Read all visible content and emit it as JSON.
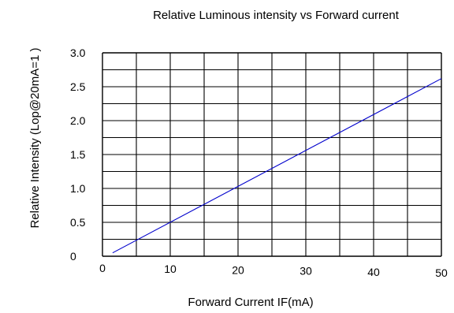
{
  "chart_data": {
    "type": "line",
    "title": "Relative Luminous intensity  vs  Forward current",
    "xlabel": "Forward Current IF(mA)",
    "ylabel": "Relative Intensity    (Lop@20mA=1 )",
    "xlim": [
      0,
      50
    ],
    "ylim": [
      0,
      3.0
    ],
    "x_ticks": [
      0,
      10,
      20,
      30,
      40,
      50
    ],
    "x_tick_labels": [
      "0",
      "10",
      "20",
      "30",
      "40",
      "50"
    ],
    "y_ticks": [
      0,
      0.5,
      1.0,
      1.5,
      2.0,
      2.5,
      3.0
    ],
    "y_tick_labels": [
      "0",
      "0.5",
      "1.0",
      "1.5",
      "2.0",
      "2.5",
      "3.0"
    ],
    "grid": true,
    "series": [
      {
        "x": [
          1.5,
          50
        ],
        "y": [
          0.05,
          2.62
        ]
      }
    ],
    "colors": {
      "series": "#0000cc",
      "grid": "#000000",
      "background": "#ffffff"
    }
  }
}
